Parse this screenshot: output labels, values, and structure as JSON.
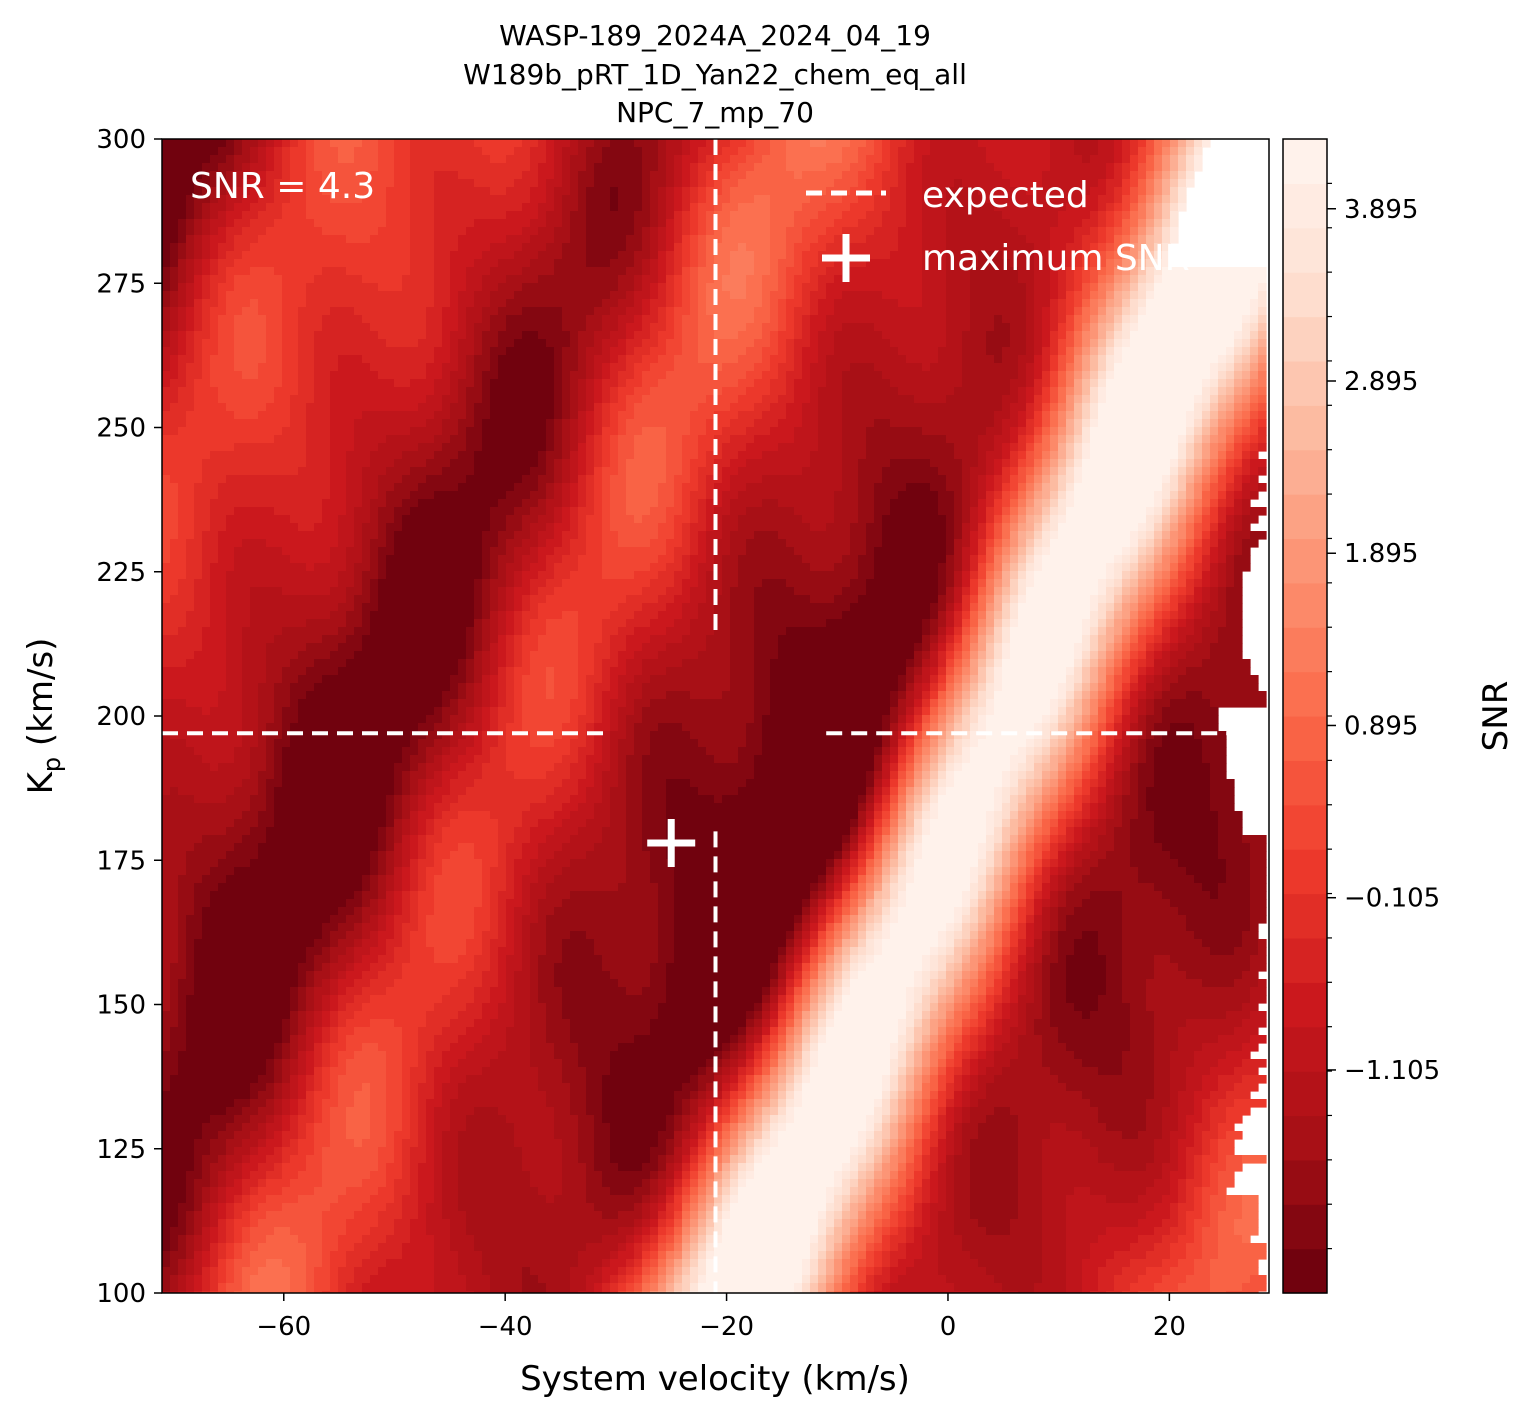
{
  "chart_data": {
    "type": "heatmap",
    "title_lines": [
      "WASP-189_2024A_2024_04_19",
      "W189b_pRT_1D_Yan22_chem_eq_all",
      "NPC_7_mp_70"
    ],
    "xlabel": "System velocity (km/s)",
    "ylabel_main": "K",
    "ylabel_sub": "p",
    "ylabel_units": " (km/s)",
    "xlim": [
      -71,
      29
    ],
    "ylim": [
      100,
      300
    ],
    "x_ticks": [
      -60,
      -40,
      -20,
      0,
      20
    ],
    "x_tick_labels": [
      "−60",
      "−40",
      "−20",
      "0",
      "20"
    ],
    "y_ticks": [
      100,
      125,
      150,
      175,
      200,
      225,
      250,
      275,
      300
    ],
    "y_tick_labels": [
      "100",
      "125",
      "150",
      "175",
      "200",
      "225",
      "250",
      "275",
      "300"
    ],
    "colorbar": {
      "label": "SNR",
      "colormap": "Reds_r",
      "range": [
        -2.4,
        4.3
      ],
      "ticks": [
        -1.105,
        -0.105,
        0.895,
        1.895,
        2.895,
        3.895
      ],
      "tick_labels": [
        "−1.105",
        "−0.105",
        "0.895",
        "1.895",
        "2.895",
        "3.895"
      ],
      "levels": 26
    },
    "snr_annotation": "SNR = 4.3",
    "expected": {
      "vsys": -21,
      "kp": 197
    },
    "maximum_snr": {
      "vsys": -25,
      "kp": 178,
      "snr": 4.3
    },
    "legend": {
      "placement": "upper right",
      "entries": [
        {
          "label": "expected",
          "marker": "dashed-line"
        },
        {
          "label": "maximum SNR",
          "marker": "plus"
        }
      ]
    },
    "guide_color": "#ffffff"
  }
}
